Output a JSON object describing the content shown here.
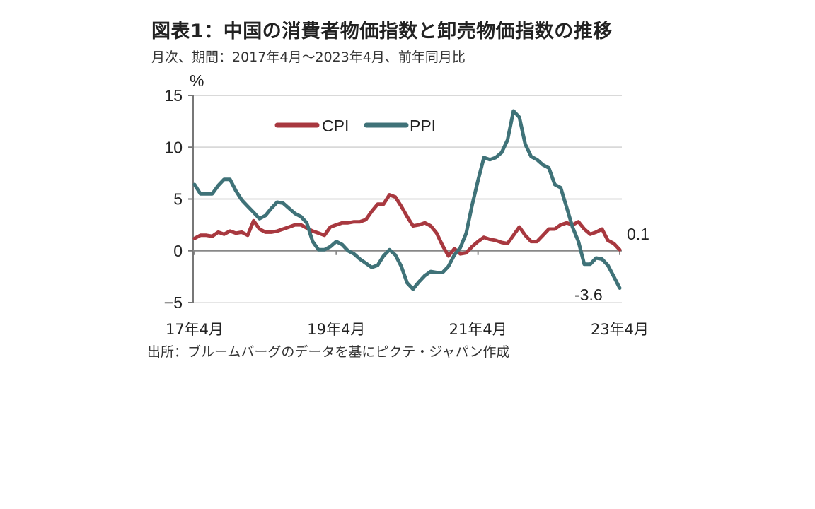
{
  "title": "図表1：中国の消費者物価指数と卸売物価指数の推移",
  "subtitle": "月次、期間：2017年4月～2023年4月、前年同月比",
  "source": "出所：ブルームバーグのデータを基にピクテ・ジャパン作成",
  "chart_data": {
    "type": "line",
    "ylabel": "%",
    "ylim": [
      -5,
      15
    ],
    "yticks": [
      "15",
      "10",
      "5",
      "0",
      "-5"
    ],
    "xticks": [
      "17年4月",
      "19年4月",
      "21年4月",
      "23年4月"
    ],
    "x_range": [
      "2017-04",
      "2023-04"
    ],
    "grid": true,
    "legend": "top",
    "series": [
      {
        "name": "CPI",
        "color": "#a8383f",
        "end_label": "0.1",
        "values": [
          1.2,
          1.5,
          1.5,
          1.4,
          1.8,
          1.6,
          1.9,
          1.7,
          1.8,
          1.5,
          2.9,
          2.1,
          1.8,
          1.8,
          1.9,
          2.1,
          2.3,
          2.5,
          2.5,
          2.2,
          1.9,
          1.7,
          1.5,
          2.3,
          2.5,
          2.7,
          2.7,
          2.8,
          2.8,
          3.0,
          3.8,
          4.5,
          4.5,
          5.4,
          5.2,
          4.3,
          3.3,
          2.4,
          2.5,
          2.7,
          2.4,
          1.7,
          0.5,
          -0.5,
          0.2,
          -0.3,
          -0.2,
          0.4,
          0.9,
          1.3,
          1.1,
          1.0,
          0.8,
          0.7,
          1.5,
          2.3,
          1.5,
          0.9,
          0.9,
          1.5,
          2.1,
          2.1,
          2.5,
          2.7,
          2.5,
          2.8,
          2.1,
          1.6,
          1.8,
          2.1,
          1.0,
          0.7,
          0.1
        ]
      },
      {
        "name": "PPI",
        "color": "#3f7278",
        "end_label": "-3.6",
        "values": [
          6.4,
          5.5,
          5.5,
          5.5,
          6.3,
          6.9,
          6.9,
          5.8,
          4.9,
          4.3,
          3.7,
          3.1,
          3.4,
          4.1,
          4.7,
          4.6,
          4.1,
          3.6,
          3.3,
          2.7,
          0.9,
          0.1,
          0.1,
          0.4,
          0.9,
          0.6,
          0.0,
          -0.3,
          -0.8,
          -1.2,
          -1.6,
          -1.4,
          -0.5,
          0.1,
          -0.4,
          -1.5,
          -3.1,
          -3.7,
          -3.0,
          -2.4,
          -2.0,
          -2.1,
          -2.1,
          -1.5,
          -0.4,
          0.3,
          1.7,
          4.4,
          6.8,
          9.0,
          8.8,
          9.0,
          9.5,
          10.7,
          13.5,
          12.9,
          10.3,
          9.1,
          8.8,
          8.3,
          8.0,
          6.4,
          6.1,
          4.2,
          2.3,
          0.9,
          -1.3,
          -1.3,
          -0.7,
          -0.8,
          -1.4,
          -2.5,
          -3.6
        ]
      }
    ]
  }
}
